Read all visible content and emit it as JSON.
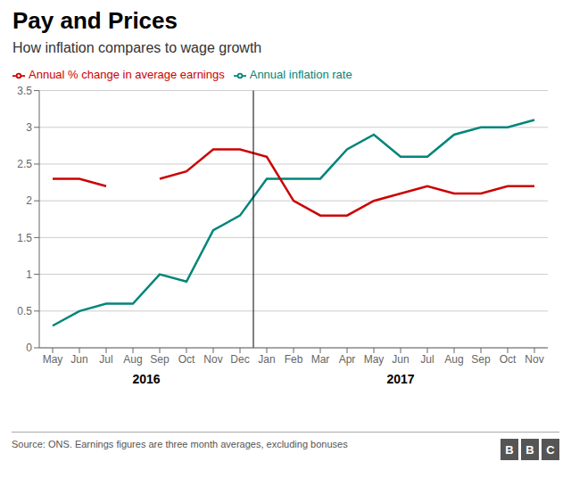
{
  "chart_data": {
    "type": "line",
    "title": "Pay and Prices",
    "subtitle": "How inflation compares to wage growth",
    "source": "Source: ONS. Earnings figures are three month averages, excluding bonuses",
    "logo": "BBC",
    "categories": [
      "May",
      "Jun",
      "Jul",
      "Aug",
      "Sep",
      "Oct",
      "Nov",
      "Dec",
      "Jan",
      "Feb",
      "Mar",
      "Apr",
      "May",
      "Jun",
      "Jul",
      "Aug",
      "Sep",
      "Oct",
      "Nov"
    ],
    "series": [
      {
        "name": "Annual inflation rate",
        "color": "#00857a",
        "values": [
          0.3,
          0.5,
          0.6,
          0.6,
          1.0,
          0.9,
          1.6,
          1.8,
          2.3,
          2.3,
          2.3,
          2.7,
          2.9,
          2.6,
          2.6,
          2.9,
          3.0,
          3.0,
          3.1
        ]
      },
      {
        "name": "Annual % change in average earnings",
        "color": "#cc0000",
        "values": [
          2.3,
          2.3,
          2.2,
          null,
          2.3,
          2.4,
          2.7,
          2.7,
          2.6,
          2.0,
          1.8,
          1.8,
          2.0,
          2.1,
          2.2,
          2.1,
          2.1,
          2.2,
          2.2
        ]
      }
    ],
    "ylim": [
      0,
      3.5
    ],
    "yticks": [
      0,
      0.5,
      1,
      1.5,
      2,
      2.5,
      3,
      3.5
    ],
    "grid": "y",
    "legend": "upper left",
    "vlines": [
      7.5
    ],
    "annotations": [
      {
        "text": "2016",
        "x": 3.5
      },
      {
        "text": "2017",
        "x": 13.0
      }
    ]
  }
}
